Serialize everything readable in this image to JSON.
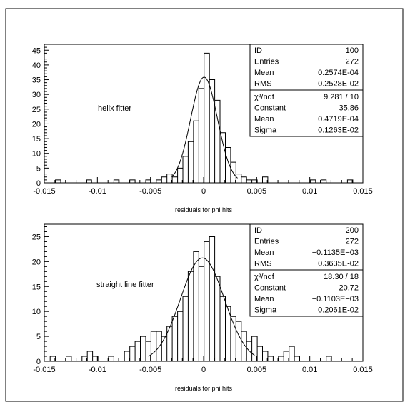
{
  "chart_data": [
    {
      "type": "histogram",
      "title": "",
      "annotation": "helix fitter",
      "xlabel": "residuals for phi hits",
      "ylabel": "",
      "xlim": [
        -0.015,
        0.015
      ],
      "ylim": [
        0,
        47
      ],
      "x_ticks": [
        "-0.015",
        "-0.01",
        "-0.005",
        "0",
        "0.005",
        "0.01",
        "0.015"
      ],
      "y_ticks": [
        "0",
        "5",
        "10",
        "15",
        "20",
        "25",
        "30",
        "35",
        "40",
        "45"
      ],
      "bin_width": 0.0005,
      "bins": [
        {
          "x": -0.0137,
          "y": 1
        },
        {
          "x": -0.0108,
          "y": 1
        },
        {
          "x": -0.0082,
          "y": 1
        },
        {
          "x": -0.0067,
          "y": 1
        },
        {
          "x": -0.0052,
          "y": 1
        },
        {
          "x": -0.0042,
          "y": 1
        },
        {
          "x": -0.0037,
          "y": 2
        },
        {
          "x": -0.0032,
          "y": 3
        },
        {
          "x": -0.0027,
          "y": 2
        },
        {
          "x": -0.0022,
          "y": 5
        },
        {
          "x": -0.0017,
          "y": 9
        },
        {
          "x": -0.0012,
          "y": 14
        },
        {
          "x": -0.0007,
          "y": 21
        },
        {
          "x": -0.0002,
          "y": 32
        },
        {
          "x": 0.0003,
          "y": 44
        },
        {
          "x": 0.0008,
          "y": 35
        },
        {
          "x": 0.0013,
          "y": 28
        },
        {
          "x": 0.0018,
          "y": 17
        },
        {
          "x": 0.0023,
          "y": 12
        },
        {
          "x": 0.0028,
          "y": 7
        },
        {
          "x": 0.0033,
          "y": 3
        },
        {
          "x": 0.0038,
          "y": 2
        },
        {
          "x": 0.0043,
          "y": 1
        },
        {
          "x": 0.0048,
          "y": 1
        },
        {
          "x": 0.0058,
          "y": 2
        },
        {
          "x": 0.0103,
          "y": 1
        },
        {
          "x": 0.0113,
          "y": 1
        },
        {
          "x": 0.0138,
          "y": 1
        }
      ],
      "fit": {
        "function": "gaussian",
        "constant": 35.86,
        "mean": 4.719e-05,
        "sigma": 0.001263,
        "range": [
          -0.003,
          0.0032
        ]
      },
      "stats": {
        "rows": [
          {
            "label": "ID",
            "value": "100"
          },
          {
            "label": "Entries",
            "value": "272"
          },
          {
            "label": "Mean",
            "value": "0.2574E-04"
          },
          {
            "label": "RMS",
            "value": "0.2528E-02"
          },
          {
            "label": "χ²/ndf",
            "value": "9.281   /   10"
          },
          {
            "label": "Constant",
            "value": "35.86"
          },
          {
            "label": "Mean",
            "value": "0.4719E-04"
          },
          {
            "label": "Sigma",
            "value": "0.1263E-02"
          }
        ]
      }
    },
    {
      "type": "histogram",
      "title": "",
      "annotation": "straight line fitter",
      "xlabel": "residuals for phi hits",
      "ylabel": "",
      "xlim": [
        -0.015,
        0.015
      ],
      "ylim": [
        0,
        27.5
      ],
      "x_ticks": [
        "-0.015",
        "-0.01",
        "-0.005",
        "0",
        "0.005",
        "0.01",
        "0.015"
      ],
      "y_ticks": [
        "0",
        "5",
        "10",
        "15",
        "20",
        "25"
      ],
      "bin_width": 0.0005,
      "bins": [
        {
          "x": -0.0147,
          "y": 0
        },
        {
          "x": -0.0142,
          "y": 1
        },
        {
          "x": -0.0127,
          "y": 1
        },
        {
          "x": -0.0112,
          "y": 1
        },
        {
          "x": -0.0107,
          "y": 2
        },
        {
          "x": -0.0102,
          "y": 1
        },
        {
          "x": -0.0087,
          "y": 1
        },
        {
          "x": -0.0072,
          "y": 2
        },
        {
          "x": -0.0067,
          "y": 3
        },
        {
          "x": -0.0062,
          "y": 4
        },
        {
          "x": -0.0057,
          "y": 5
        },
        {
          "x": -0.0052,
          "y": 4
        },
        {
          "x": -0.0047,
          "y": 6
        },
        {
          "x": -0.0042,
          "y": 6
        },
        {
          "x": -0.0037,
          "y": 5
        },
        {
          "x": -0.0032,
          "y": 7
        },
        {
          "x": -0.0027,
          "y": 9
        },
        {
          "x": -0.0022,
          "y": 10
        },
        {
          "x": -0.0017,
          "y": 13
        },
        {
          "x": -0.0012,
          "y": 18
        },
        {
          "x": -0.0007,
          "y": 22
        },
        {
          "x": -0.0002,
          "y": 19
        },
        {
          "x": 0.0003,
          "y": 24
        },
        {
          "x": 0.0008,
          "y": 25
        },
        {
          "x": 0.0013,
          "y": 17
        },
        {
          "x": 0.0018,
          "y": 13
        },
        {
          "x": 0.0023,
          "y": 11
        },
        {
          "x": 0.0028,
          "y": 9
        },
        {
          "x": 0.0033,
          "y": 8
        },
        {
          "x": 0.0038,
          "y": 6
        },
        {
          "x": 0.0043,
          "y": 4
        },
        {
          "x": 0.0048,
          "y": 5
        },
        {
          "x": 0.0053,
          "y": 3
        },
        {
          "x": 0.0058,
          "y": 2
        },
        {
          "x": 0.0063,
          "y": 1
        },
        {
          "x": 0.0073,
          "y": 1
        },
        {
          "x": 0.0078,
          "y": 2
        },
        {
          "x": 0.0083,
          "y": 3
        },
        {
          "x": 0.0088,
          "y": 1
        },
        {
          "x": 0.0118,
          "y": 1
        }
      ],
      "fit": {
        "function": "gaussian",
        "constant": 20.72,
        "mean": -0.0001103,
        "sigma": 0.002061,
        "range": [
          -0.0052,
          0.0048
        ]
      },
      "stats": {
        "rows": [
          {
            "label": "ID",
            "value": "200"
          },
          {
            "label": "Entries",
            "value": "272"
          },
          {
            "label": "Mean",
            "value": "−0.1135E−03"
          },
          {
            "label": "RMS",
            "value": "0.3635E-02"
          },
          {
            "label": "χ²/ndf",
            "value": "18.30   /   18"
          },
          {
            "label": "Constant",
            "value": "20.72"
          },
          {
            "label": "Mean",
            "value": "−0.1103E−03"
          },
          {
            "label": "Sigma",
            "value": "0.2061E-02"
          }
        ]
      }
    }
  ]
}
